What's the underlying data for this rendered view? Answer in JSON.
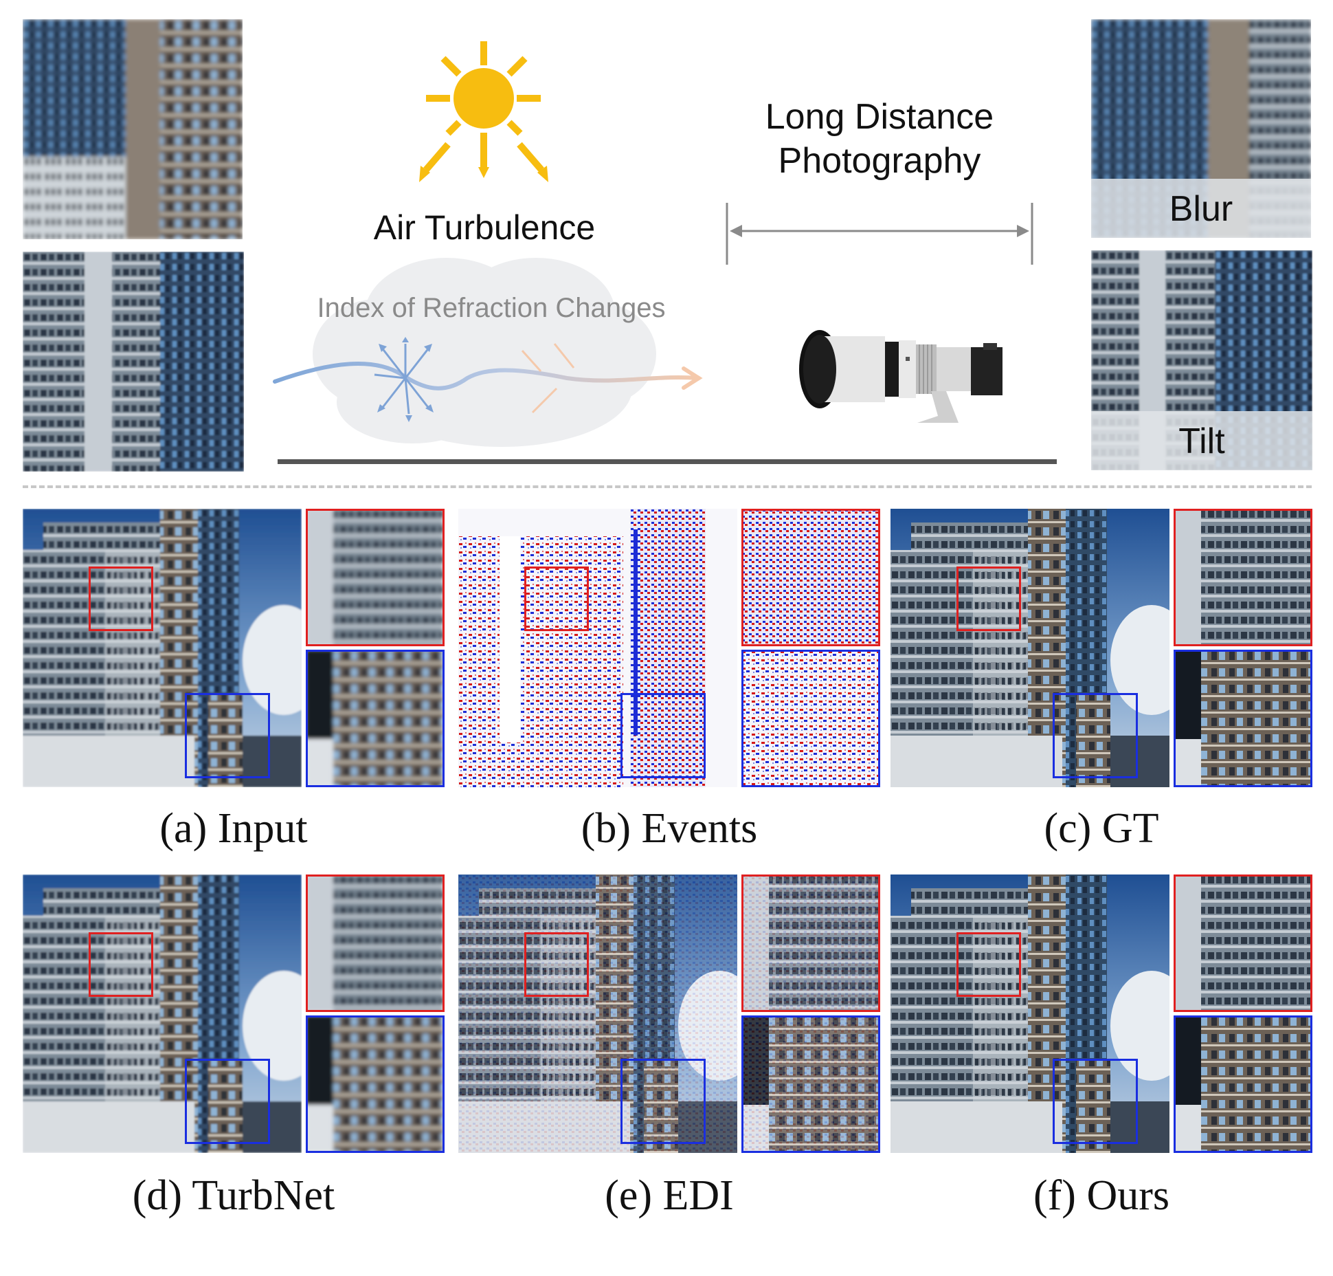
{
  "top": {
    "air_turbulence": "Air Turbulence",
    "index_of_refraction": "Index of Refraction Changes",
    "long_distance_line1": "Long Distance",
    "long_distance_line2": "Photography",
    "blur_tag": "Blur",
    "tilt_tag": "Tilt"
  },
  "captions": {
    "a": "(a) Input",
    "b": "(b) Events",
    "c": "(c) GT",
    "d": "(d) TurbNet",
    "e": "(e) EDI",
    "f": "(f) Ours"
  },
  "colors": {
    "sun": "#f7bd10",
    "zoom_red": "#e02020",
    "zoom_blue": "#1a2ee0",
    "divider": "#c8c8c8",
    "ground": "#555555"
  },
  "icons": [
    "sun-icon",
    "cloud-icon",
    "camera-icon",
    "scatter-arrows-icon",
    "distance-arrow-icon"
  ]
}
